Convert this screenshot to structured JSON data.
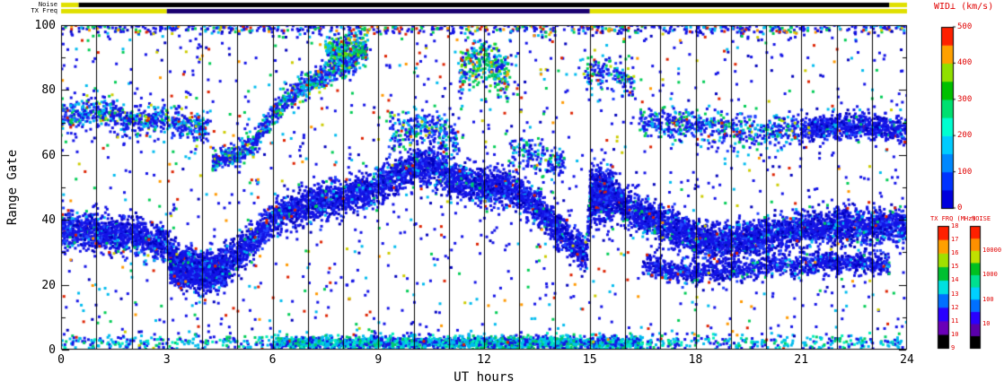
{
  "strips": {
    "noise_label": "Noise",
    "txfreq_label": "TX Freq",
    "noise_segments": [
      {
        "from": 0,
        "to": 0.5,
        "color": "#e0e000"
      },
      {
        "from": 0.5,
        "to": 23.5,
        "color": "#000000"
      },
      {
        "from": 23.5,
        "to": 24,
        "color": "#e0e000"
      }
    ],
    "txfreq_segments": [
      {
        "from": 0,
        "to": 3,
        "color": "#e0e000"
      },
      {
        "from": 3,
        "to": 15,
        "color": "#1a0070"
      },
      {
        "from": 15,
        "to": 24,
        "color": "#e0e000"
      }
    ]
  },
  "axes": {
    "xlabel": "UT hours",
    "ylabel": "Range Gate",
    "x_ticks": [
      0,
      3,
      6,
      9,
      12,
      15,
      18,
      21,
      24
    ],
    "y_ticks": [
      0,
      20,
      40,
      60,
      80,
      100
    ]
  },
  "colorbars": {
    "wid": {
      "title": "WID⊥ (km/s)",
      "ticks": [
        500,
        400,
        300,
        200,
        100,
        0
      ],
      "min": 0,
      "max": 500,
      "segments_bottom_to_top": [
        "#0000dd",
        "#0033ff",
        "#0088ff",
        "#00ccff",
        "#00ffd0",
        "#00e070",
        "#00c000",
        "#90e000",
        "#ffa000",
        "#ff2000"
      ]
    },
    "txfrq": {
      "title": "TX FRQ (MHz)",
      "ticks": [
        18,
        17,
        16,
        15,
        14,
        13,
        12,
        11,
        10,
        9
      ],
      "min": 9,
      "max": 18,
      "segments_bottom_to_top": [
        "#000000",
        "#6a00b8",
        "#2a00ff",
        "#0070ff",
        "#00e0e0",
        "#00c030",
        "#a0e000",
        "#ffa000",
        "#ff2000"
      ]
    },
    "noise": {
      "title": "NOISE",
      "ticks": [
        "10000",
        "1000",
        "100",
        "10"
      ],
      "log_decades": 5,
      "segments_bottom_to_top": [
        "#000000",
        "#5a00aa",
        "#2a00ff",
        "#0070ff",
        "#00d0ff",
        "#00e090",
        "#00c020",
        "#c0e000",
        "#ff9000",
        "#ff2000"
      ]
    }
  },
  "chart_data": {
    "type": "heatmap",
    "xlabel": "UT hours",
    "ylabel": "Range Gate",
    "xlim": [
      0,
      24
    ],
    "ylim": [
      0,
      100
    ],
    "x_ticks": [
      0,
      3,
      6,
      9,
      12,
      15,
      18,
      21,
      24
    ],
    "y_ticks": [
      0,
      20,
      40,
      60,
      80,
      100
    ],
    "hour_gridlines": true,
    "colorbar_label": "WID⊥ (km/s)",
    "seed": 1337,
    "point_size": 3,
    "palettes": {
      "mainP": {
        "colors": [
          "#1414e6",
          "#0000bb",
          "#2244ff",
          "#00bbee",
          "#00cc66",
          "#dd2200"
        ],
        "weights": [
          0.62,
          0.18,
          0.12,
          0.05,
          0.02,
          0.01
        ]
      },
      "upperP": {
        "colors": [
          "#1414e6",
          "#00bbee",
          "#00cc55",
          "#2244ff",
          "#bbdd00",
          "#dd2200"
        ],
        "weights": [
          0.45,
          0.22,
          0.14,
          0.12,
          0.04,
          0.03
        ]
      },
      "greenP": {
        "colors": [
          "#00cc55",
          "#00bbee",
          "#1414e6",
          "#66dd00",
          "#dd2200",
          "#ffaa00"
        ],
        "weights": [
          0.3,
          0.28,
          0.25,
          0.09,
          0.04,
          0.04
        ]
      },
      "bottomP": {
        "colors": [
          "#00bbee",
          "#1414e6",
          "#00cc66",
          "#00eebb"
        ],
        "weights": [
          0.4,
          0.3,
          0.15,
          0.15
        ]
      },
      "noiseP": {
        "colors": [
          "#1414e6",
          "#00bbee",
          "#00cc55",
          "#dd2200",
          "#ff9900",
          "#cccc00",
          "#0000bb"
        ],
        "weights": [
          0.5,
          0.13,
          0.1,
          0.1,
          0.05,
          0.05,
          0.07
        ]
      }
    },
    "bands": [
      {
        "name": "main-band",
        "x0": 0,
        "x1": 24,
        "halfwidth": 5.5,
        "per_hour": 380,
        "palette": "mainP",
        "centers": [
          [
            0,
            37
          ],
          [
            1,
            36
          ],
          [
            2,
            35
          ],
          [
            3,
            33
          ],
          [
            3.2,
            27
          ],
          [
            4,
            23
          ],
          [
            4.8,
            27
          ],
          [
            5.5,
            34
          ],
          [
            6,
            40
          ],
          [
            7,
            45
          ],
          [
            8,
            47
          ],
          [
            9,
            50
          ],
          [
            10,
            56
          ],
          [
            10.6,
            57
          ],
          [
            11,
            53
          ],
          [
            12,
            50
          ],
          [
            12.6,
            50
          ],
          [
            13.3,
            46
          ],
          [
            14,
            38
          ],
          [
            14.9,
            29
          ],
          [
            15.05,
            48
          ],
          [
            15.6,
            49
          ],
          [
            16,
            44
          ],
          [
            17,
            39
          ],
          [
            18,
            34
          ],
          [
            19,
            33
          ],
          [
            20,
            35
          ],
          [
            21,
            37
          ],
          [
            22,
            38
          ],
          [
            24,
            38
          ]
        ]
      },
      {
        "name": "dense-block-03",
        "x0": 3.1,
        "x1": 4.7,
        "halfwidth": 5.5,
        "per_hour": 620,
        "palette": "mainP",
        "centers": [
          [
            3.1,
            25
          ],
          [
            4.7,
            24
          ]
        ]
      },
      {
        "name": "dense-block-15",
        "x0": 15.0,
        "x1": 15.65,
        "halfwidth": 9,
        "per_hour": 720,
        "palette": "mainP",
        "centers": [
          [
            15,
            48
          ],
          [
            15.65,
            47
          ]
        ]
      },
      {
        "name": "low-band-evening",
        "x0": 16.5,
        "x1": 23.5,
        "halfwidth": 3.5,
        "per_hour": 170,
        "palette": "mainP",
        "centers": [
          [
            16.5,
            26
          ],
          [
            17.5,
            24
          ],
          [
            19,
            24
          ],
          [
            20,
            26
          ],
          [
            22,
            27
          ],
          [
            23.5,
            26
          ]
        ]
      },
      {
        "name": "upper-band-morning",
        "x0": 0,
        "x1": 4.2,
        "halfwidth": 4.5,
        "per_hour": 170,
        "palette": "upperP",
        "centers": [
          [
            0,
            71
          ],
          [
            1,
            74
          ],
          [
            2,
            70
          ],
          [
            3,
            71
          ],
          [
            4.2,
            68
          ]
        ]
      },
      {
        "name": "rising-arc",
        "x0": 4.3,
        "x1": 8.4,
        "halfwidth": 3.5,
        "per_hour": 210,
        "palette": "upperP",
        "centers": [
          [
            4.3,
            58
          ],
          [
            5,
            60
          ],
          [
            5.5,
            64
          ],
          [
            6,
            72
          ],
          [
            6.6,
            79
          ],
          [
            7.2,
            83
          ],
          [
            8.4,
            89
          ]
        ]
      },
      {
        "name": "top-cluster-08",
        "x0": 7.5,
        "x1": 8.7,
        "halfwidth": 5,
        "per_hour": 270,
        "palette": "greenP",
        "centers": [
          [
            7.5,
            92
          ],
          [
            8.7,
            93
          ]
        ]
      },
      {
        "name": "mid-cluster-10",
        "x0": 9.3,
        "x1": 11.3,
        "halfwidth": 6,
        "per_hour": 130,
        "palette": "upperP",
        "centers": [
          [
            9.3,
            66
          ],
          [
            10.3,
            70
          ],
          [
            11.3,
            64
          ]
        ]
      },
      {
        "name": "top-cluster-12",
        "x0": 11.3,
        "x1": 12.7,
        "halfwidth": 7,
        "per_hour": 230,
        "palette": "greenP",
        "centers": [
          [
            11.3,
            85
          ],
          [
            12,
            89
          ],
          [
            12.7,
            84
          ]
        ]
      },
      {
        "name": "mid-cluster-13",
        "x0": 12.7,
        "x1": 14.3,
        "halfwidth": 5,
        "per_hour": 110,
        "palette": "upperP",
        "centers": [
          [
            12.7,
            62
          ],
          [
            14.3,
            57
          ]
        ]
      },
      {
        "name": "upper-cluster-15",
        "x0": 14.8,
        "x1": 16.3,
        "halfwidth": 5,
        "per_hour": 100,
        "palette": "upperP",
        "centers": [
          [
            14.8,
            86
          ],
          [
            16.3,
            83
          ]
        ]
      },
      {
        "name": "upper-band-evening",
        "x0": 16.4,
        "x1": 21,
        "halfwidth": 5,
        "per_hour": 120,
        "palette": "upperP",
        "centers": [
          [
            16.4,
            70
          ],
          [
            18,
            69
          ],
          [
            19.5,
            67
          ],
          [
            21,
            68
          ]
        ]
      },
      {
        "name": "upper-band-night",
        "x0": 21,
        "x1": 24,
        "halfwidth": 4,
        "per_hour": 240,
        "palette": "mainP",
        "centers": [
          [
            21,
            68
          ],
          [
            22.5,
            69
          ],
          [
            24,
            68
          ]
        ]
      },
      {
        "name": "bottom-scatter-day",
        "x0": 6,
        "x1": 16.5,
        "halfwidth": 2,
        "per_hour": 150,
        "palette": "bottomP",
        "centers": [
          [
            6,
            2
          ],
          [
            16.5,
            2
          ]
        ]
      },
      {
        "name": "bottom-scatter-sparse",
        "x0": 0,
        "x1": 24,
        "halfwidth": 2.5,
        "per_hour": 35,
        "palette": "bottomP",
        "centers": [
          [
            0,
            2
          ],
          [
            24,
            2
          ]
        ]
      },
      {
        "name": "top-edge-scatter",
        "x0": 0,
        "x1": 24,
        "halfwidth": 2,
        "per_hour": 30,
        "palette": "noiseP",
        "centers": [
          [
            0,
            99
          ],
          [
            24,
            99
          ]
        ]
      },
      {
        "name": "speckle-noise",
        "x0": 0,
        "x1": 24,
        "uniform": true,
        "per_hour": 65,
        "palette": "noiseP",
        "centers": [
          [
            0,
            50
          ],
          [
            24,
            50
          ]
        ]
      }
    ]
  }
}
